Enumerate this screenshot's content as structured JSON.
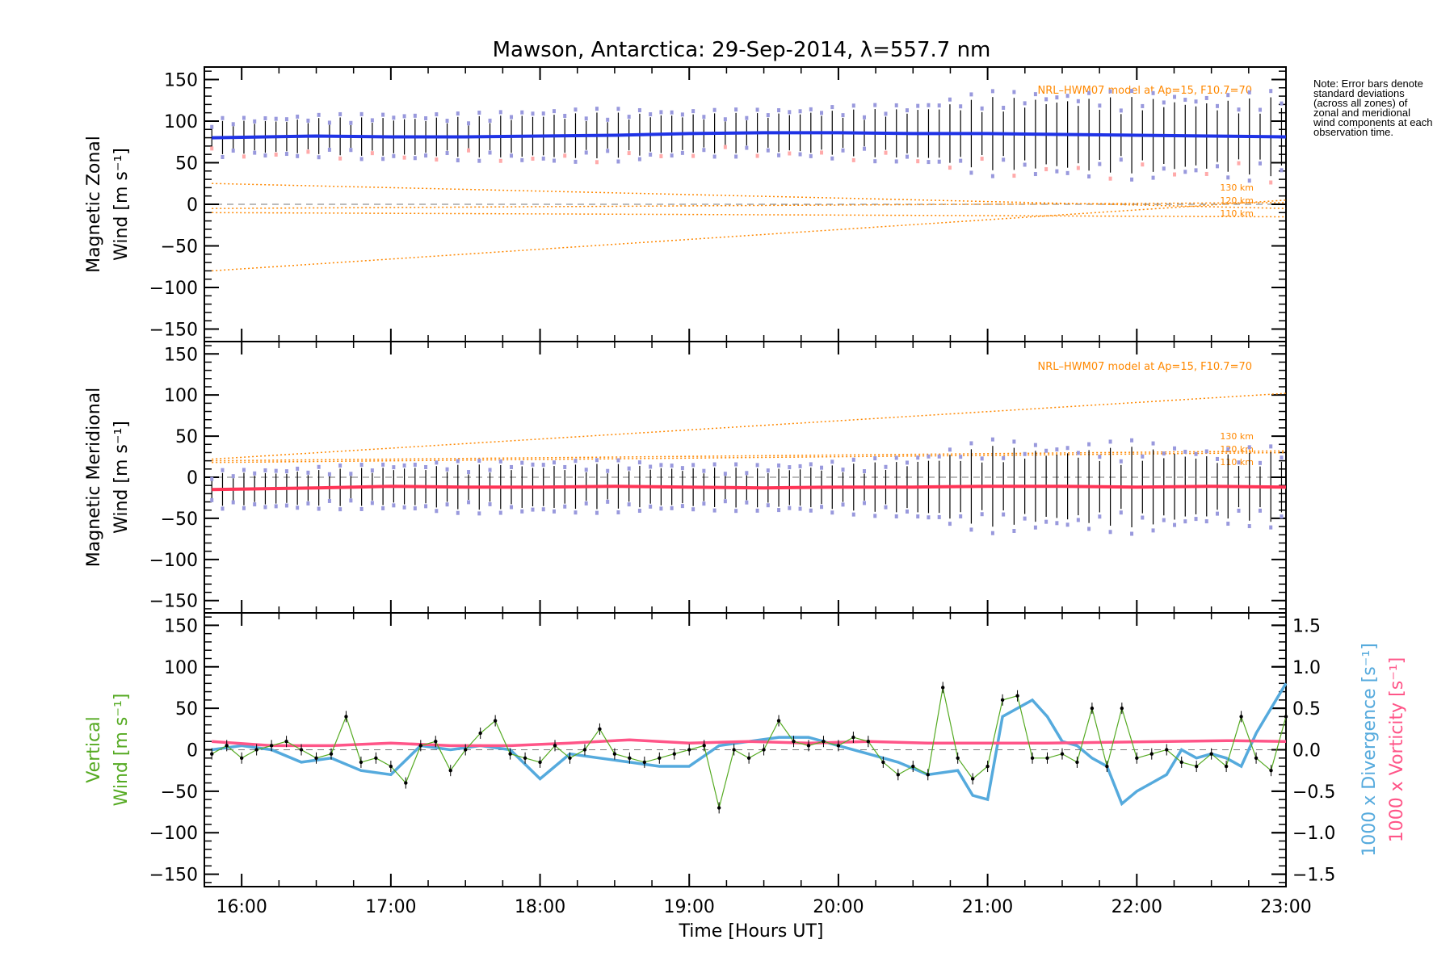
{
  "colors": {
    "zonal": "#1f33e6",
    "meridional": "#ff3355",
    "vertical": "#55aa22",
    "divergence": "#55aadd",
    "vorticity": "#ff5588",
    "model": "#ff8800",
    "zone_bars": "#9999dd",
    "zone_bars_pink": "#ffaaaa"
  },
  "chart_data": [
    {
      "type": "line",
      "panel": "zonal",
      "title": "Mawson, Antarctica: 29-Sep-2014, λ=557.7 nm",
      "ylabel_line1": "Magnetic Zonal",
      "ylabel_line2": "Wind [m s⁻¹]",
      "ylim": [
        -165,
        165
      ],
      "yticks": [
        "150",
        "100",
        "50",
        "0",
        "−50",
        "−100",
        "−150"
      ],
      "annotation": "NRL–HWM07 model at Ap=15, F10.7=70",
      "model_labels": [
        "130 km",
        "120 km",
        "110 km"
      ],
      "series": [
        {
          "name": "zonal wind",
          "x": [
            15.8,
            16.5,
            17.0,
            17.5,
            18.0,
            18.5,
            19.0,
            19.5,
            20.0,
            20.5,
            21.0,
            21.5,
            22.0,
            22.5,
            23.0
          ],
          "y": [
            80,
            82,
            81,
            81,
            82,
            83,
            85,
            86,
            86,
            85,
            85,
            84,
            83,
            82,
            81
          ],
          "err": [
            18,
            20,
            22,
            22,
            25,
            25,
            22,
            22,
            25,
            28,
            40,
            40,
            42,
            38,
            45
          ]
        },
        {
          "name": "130 km",
          "x": [
            15.8,
            23.0
          ],
          "y": [
            25,
            -5
          ]
        },
        {
          "name": "120 km",
          "x": [
            15.8,
            23.0
          ],
          "y": [
            -5,
            2
          ]
        },
        {
          "name": "110 km",
          "x": [
            15.8,
            23.0
          ],
          "y": [
            -80,
            5
          ]
        },
        {
          "name": "model-flat",
          "x": [
            15.8,
            23.0
          ],
          "y": [
            -10,
            -15
          ]
        }
      ]
    },
    {
      "type": "line",
      "panel": "meridional",
      "ylabel_line1": "Magnetic Meridional",
      "ylabel_line2": "Wind [m s⁻¹]",
      "ylim": [
        -165,
        165
      ],
      "yticks": [
        "150",
        "100",
        "50",
        "0",
        "−50",
        "−100",
        "−150"
      ],
      "annotation": "NRL–HWM07 model at Ap=15, F10.7=70",
      "model_labels": [
        "130 km",
        "120 km",
        "110 km"
      ],
      "series": [
        {
          "name": "meridional wind",
          "x": [
            15.8,
            16.5,
            17.0,
            17.5,
            18.0,
            18.5,
            19.0,
            19.5,
            20.0,
            20.5,
            21.0,
            21.5,
            22.0,
            22.5,
            23.0
          ],
          "y": [
            -15,
            -13,
            -11,
            -12,
            -12,
            -11,
            -12,
            -13,
            -12,
            -12,
            -11,
            -11,
            -12,
            -11,
            -12
          ],
          "err": [
            18,
            20,
            22,
            25,
            25,
            25,
            22,
            22,
            25,
            30,
            45,
            40,
            45,
            35,
            40
          ]
        },
        {
          "name": "130 km",
          "x": [
            15.8,
            23.0
          ],
          "y": [
            22,
            102
          ]
        },
        {
          "name": "120 km",
          "x": [
            15.8,
            23.0
          ],
          "y": [
            20,
            32
          ]
        },
        {
          "name": "110 km",
          "x": [
            15.8,
            23.0
          ],
          "y": [
            18,
            30
          ]
        }
      ]
    },
    {
      "type": "line",
      "panel": "vertical",
      "ylabel_line1": "Vertical",
      "ylabel_line2": "Wind [m s⁻¹]",
      "ylim": [
        -165,
        165
      ],
      "yticks": [
        "150",
        "100",
        "50",
        "0",
        "−50",
        "−100",
        "−150"
      ],
      "y2lim": [
        -1.65,
        1.65
      ],
      "y2ticks": [
        "1.5",
        "1.0",
        "0.5",
        "0.0",
        "−0.5",
        "−1.0",
        "−1.5"
      ],
      "y2label_divergence": "1000 x Divergence [s⁻¹]",
      "y2label_vorticity": "1000 x Vorticity [s⁻¹]",
      "xlabel": "Time [Hours UT]",
      "xlim": [
        15.75,
        23.0
      ],
      "xticks": [
        "16:00",
        "17:00",
        "18:00",
        "19:00",
        "20:00",
        "21:00",
        "22:00",
        "23:00"
      ],
      "series": [
        {
          "name": "vertical wind",
          "x": [
            15.8,
            15.9,
            16.0,
            16.1,
            16.2,
            16.3,
            16.4,
            16.5,
            16.6,
            16.7,
            16.8,
            16.9,
            17.0,
            17.1,
            17.2,
            17.3,
            17.4,
            17.5,
            17.6,
            17.7,
            17.8,
            17.9,
            18.0,
            18.1,
            18.2,
            18.3,
            18.4,
            18.5,
            18.6,
            18.7,
            18.8,
            18.9,
            19.0,
            19.1,
            19.2,
            19.3,
            19.4,
            19.5,
            19.6,
            19.7,
            19.8,
            19.9,
            20.0,
            20.1,
            20.2,
            20.3,
            20.4,
            20.5,
            20.6,
            20.7,
            20.8,
            20.9,
            21.0,
            21.1,
            21.2,
            21.3,
            21.4,
            21.5,
            21.6,
            21.7,
            21.8,
            21.9,
            22.0,
            22.1,
            22.2,
            22.3,
            22.4,
            22.5,
            22.6,
            22.7,
            22.8,
            22.9,
            23.0
          ],
          "y": [
            -5,
            5,
            -10,
            0,
            5,
            10,
            0,
            -10,
            -5,
            40,
            -15,
            -10,
            -20,
            -40,
            5,
            10,
            -25,
            0,
            20,
            35,
            -5,
            -10,
            -15,
            5,
            -10,
            0,
            25,
            -5,
            -10,
            -15,
            -10,
            -5,
            0,
            5,
            -70,
            0,
            -10,
            0,
            35,
            10,
            5,
            10,
            5,
            15,
            10,
            -15,
            -30,
            -20,
            -30,
            75,
            -10,
            -35,
            -20,
            60,
            65,
            -10,
            -10,
            -5,
            -15,
            50,
            -20,
            50,
            -10,
            -5,
            0,
            -15,
            -20,
            -5,
            -20,
            40,
            -10,
            -25,
            40
          ]
        },
        {
          "name": "divergence",
          "x": [
            15.8,
            16.0,
            16.2,
            16.4,
            16.6,
            16.8,
            17.0,
            17.2,
            17.4,
            17.6,
            17.8,
            18.0,
            18.2,
            18.4,
            18.6,
            18.8,
            19.0,
            19.2,
            19.4,
            19.6,
            19.8,
            20.0,
            20.2,
            20.4,
            20.6,
            20.8,
            20.9,
            21.0,
            21.1,
            21.2,
            21.3,
            21.4,
            21.5,
            21.6,
            21.7,
            21.8,
            21.9,
            22.0,
            22.1,
            22.2,
            22.3,
            22.4,
            22.5,
            22.6,
            22.7,
            22.8,
            22.9,
            23.0
          ],
          "y": [
            0.0,
            0.05,
            0.0,
            -0.15,
            -0.1,
            -0.25,
            -0.3,
            0.05,
            0.0,
            0.05,
            0.0,
            -0.35,
            -0.05,
            -0.1,
            -0.15,
            -0.2,
            -0.2,
            0.05,
            0.1,
            0.15,
            0.15,
            0.05,
            -0.05,
            -0.15,
            -0.3,
            -0.25,
            -0.55,
            -0.6,
            0.4,
            0.5,
            0.6,
            0.4,
            0.1,
            0.05,
            -0.1,
            -0.2,
            -0.65,
            -0.5,
            -0.4,
            -0.3,
            0.0,
            -0.1,
            -0.05,
            -0.1,
            -0.2,
            0.2,
            0.5,
            0.8
          ]
        },
        {
          "name": "vorticity",
          "x": [
            15.8,
            16.2,
            16.6,
            17.0,
            17.4,
            17.8,
            18.2,
            18.6,
            19.0,
            19.4,
            19.8,
            20.2,
            20.6,
            21.0,
            21.4,
            21.8,
            22.2,
            22.6,
            23.0
          ],
          "y": [
            0.1,
            0.05,
            0.05,
            0.08,
            0.05,
            0.05,
            0.08,
            0.12,
            0.08,
            0.1,
            0.08,
            0.1,
            0.08,
            0.08,
            0.08,
            0.09,
            0.1,
            0.11,
            0.1
          ]
        }
      ]
    }
  ],
  "note": "Note: Error bars denote standard deviations (across all zones) of zonal and meridional wind components at each observation time."
}
